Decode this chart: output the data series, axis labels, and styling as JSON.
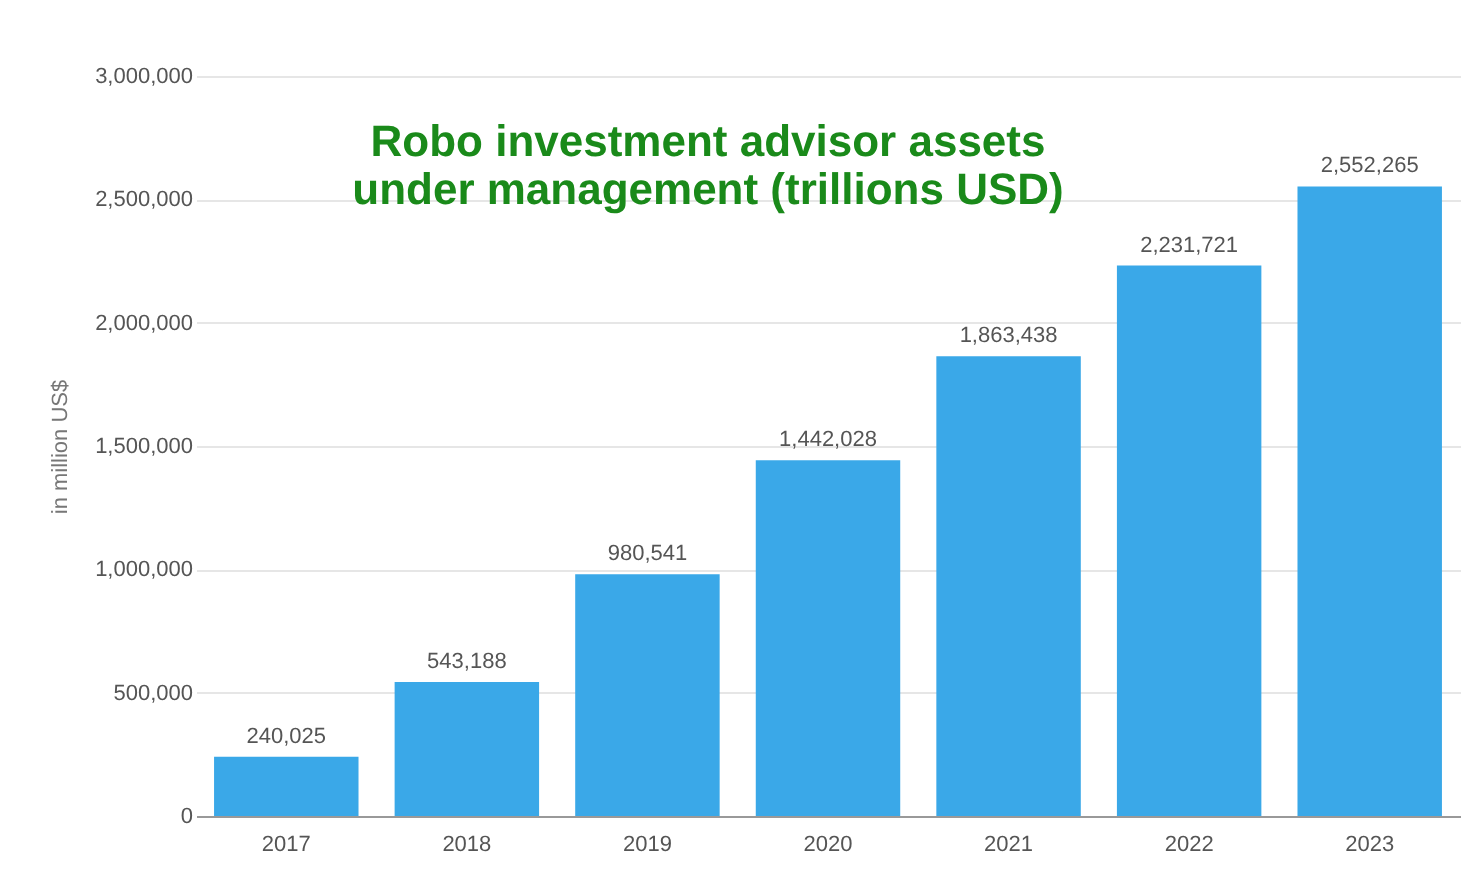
{
  "chart_data": {
    "type": "bar",
    "title": "Robo investment advisor assets under management (trillions USD)",
    "ylabel": "in million US$",
    "categories": [
      "2017",
      "2018",
      "2019",
      "2020",
      "2021",
      "2022",
      "2023"
    ],
    "values": [
      240025,
      543188,
      980541,
      1442028,
      1863438,
      2231721,
      2552265
    ],
    "value_labels": [
      "240,025",
      "543,188",
      "980,541",
      "1,442,028",
      "1,863,438",
      "2,231,721",
      "2,552,265"
    ],
    "color": "#3aa8e8",
    "ylim": [
      0,
      3000000
    ],
    "yticks": [
      0,
      {
        "value": 500000,
        "label": "500,000"
      },
      {
        "value": 1000000,
        "label": "1,000,000"
      },
      {
        "value": 1500000,
        "label": "1,500,000"
      },
      {
        "value": 2000000,
        "label": "2,000,000"
      },
      {
        "value": 2500000,
        "label": "2,500,000"
      },
      {
        "value": 3000000,
        "label": "3,000,000"
      }
    ],
    "grid": "y"
  }
}
